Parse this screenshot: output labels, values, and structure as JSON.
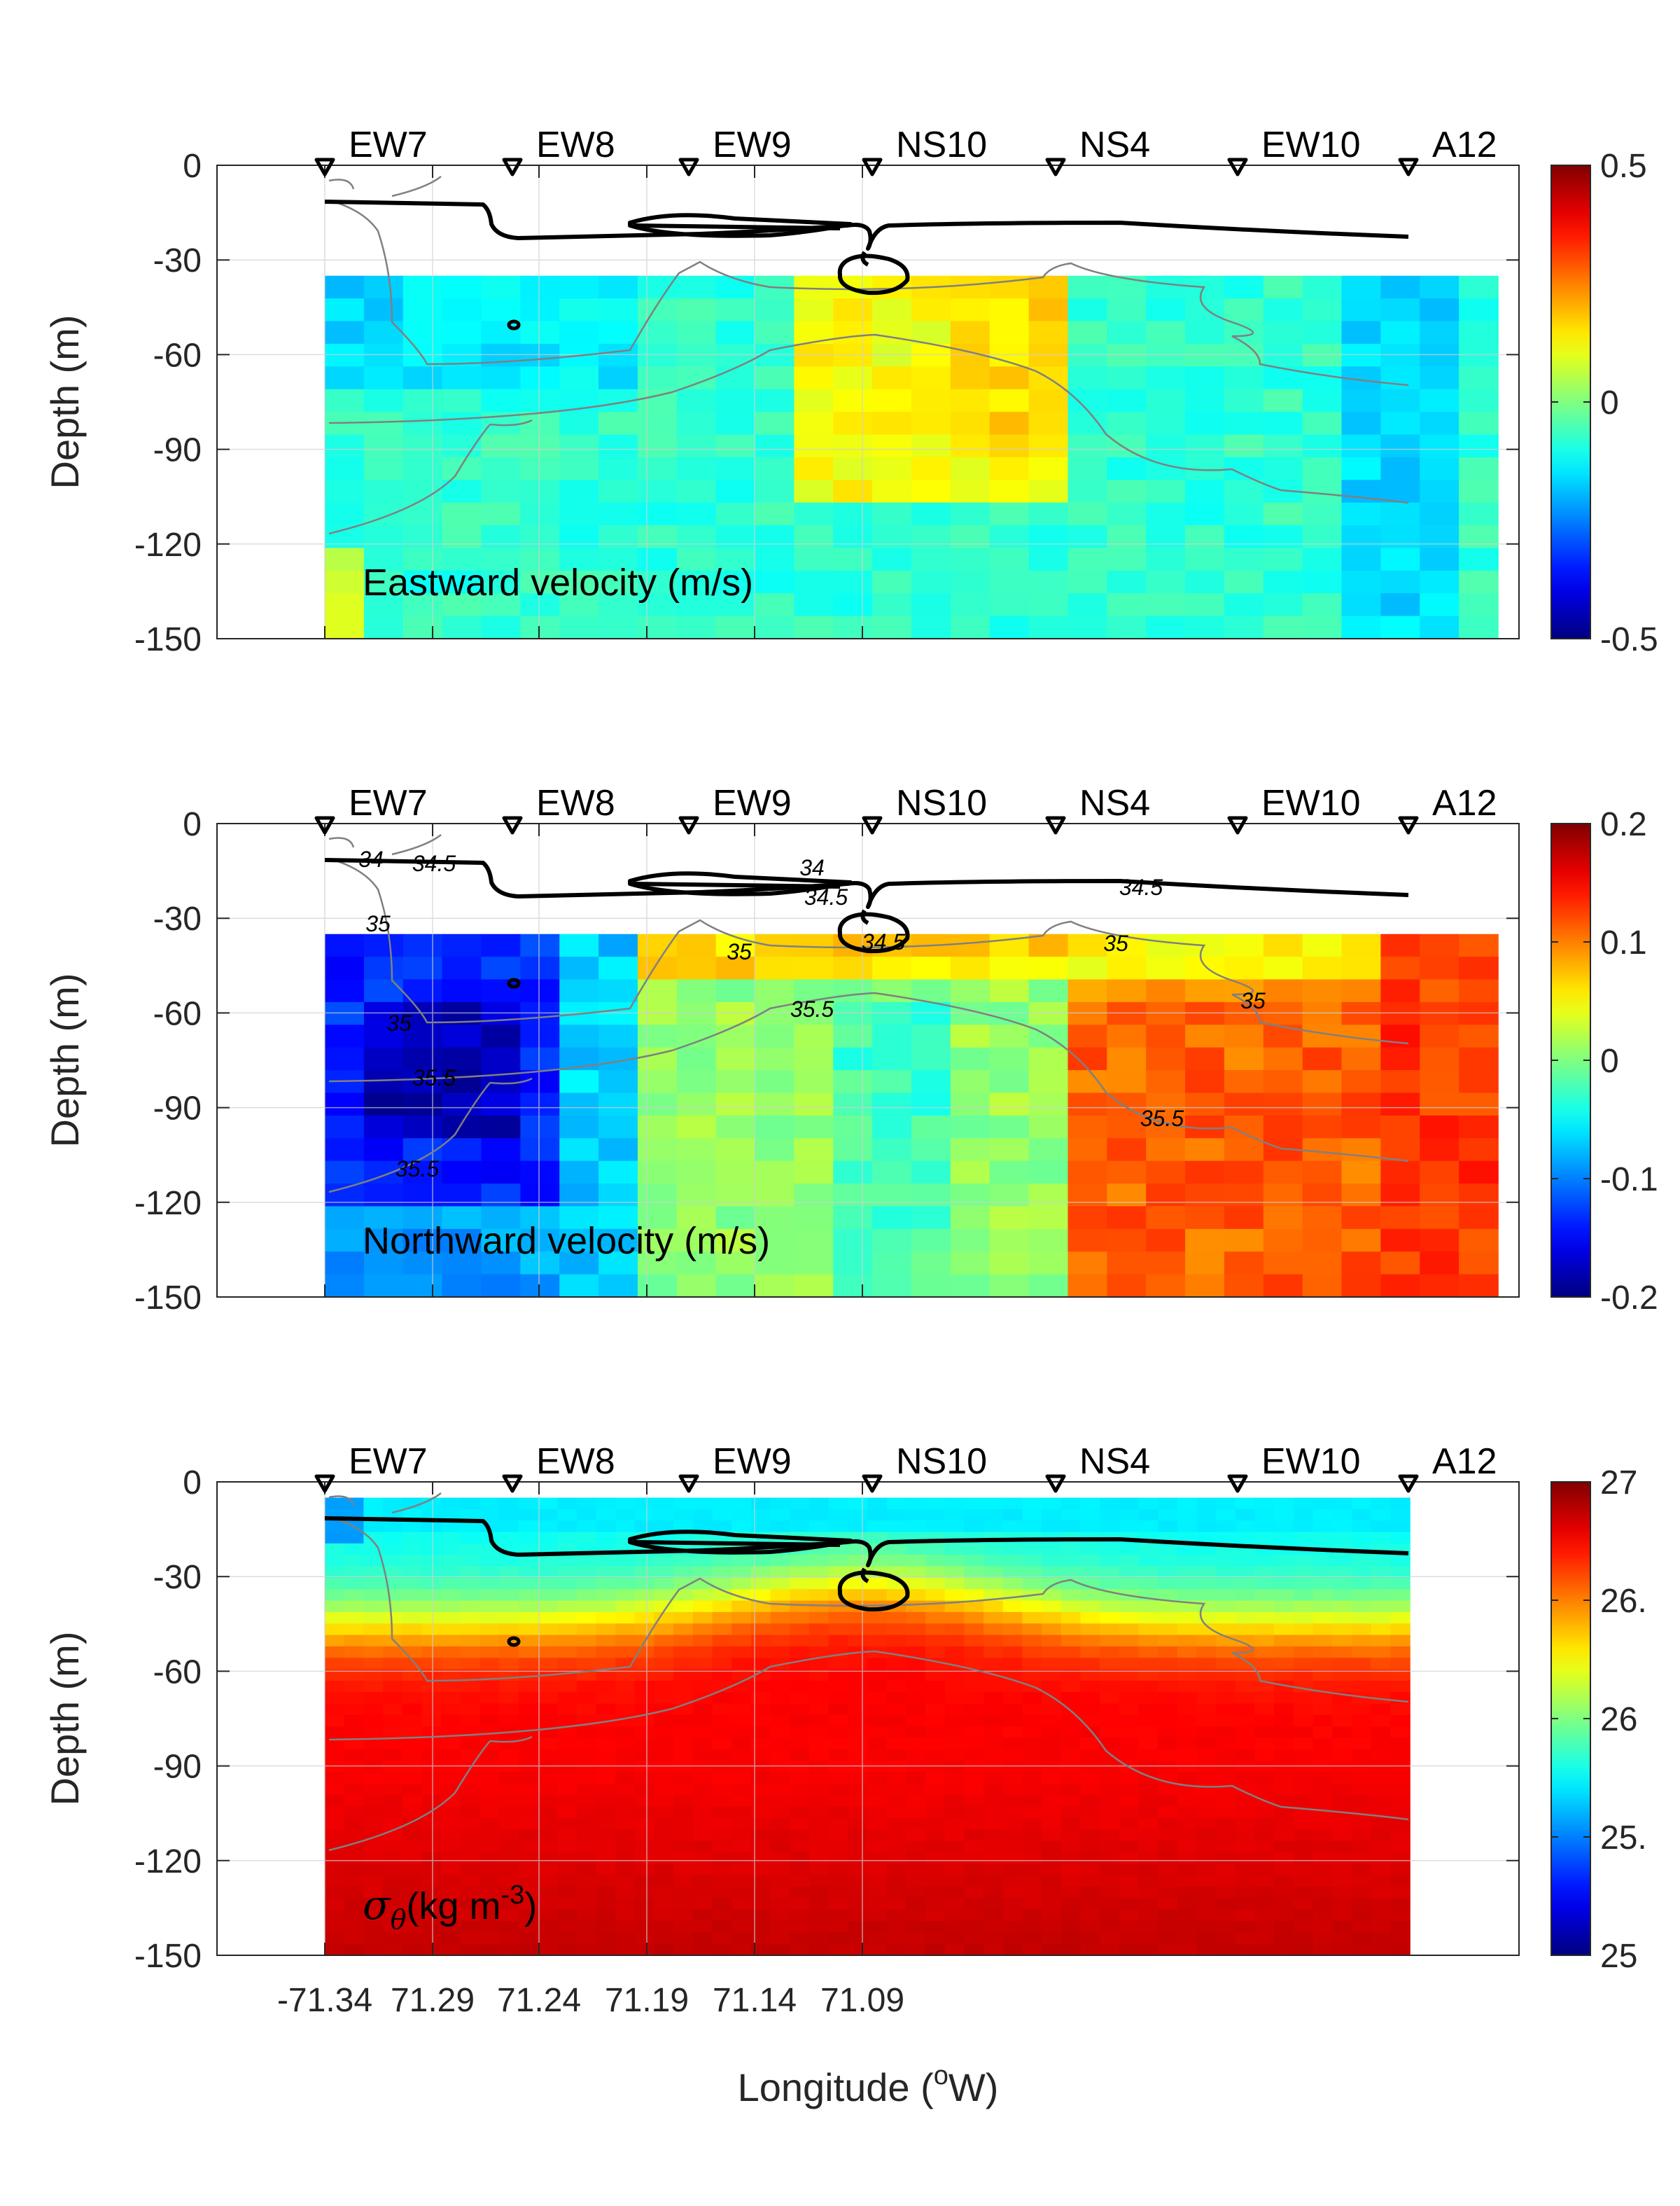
{
  "figure": {
    "xlabel_prefix": "Longitude (",
    "xlabel_sup": "o",
    "xlabel_suffix": "W)",
    "x_ticks": [
      "-71.34",
      "71.29",
      "71.24",
      "71.19",
      "71.14",
      "71.09"
    ],
    "stations": [
      "EW7",
      "EW8",
      "EW9",
      "NS10",
      "NS4",
      "EW10",
      "A12"
    ],
    "depth_ticks": [
      "0",
      "-30",
      "-60",
      "-90",
      "-120",
      "-150"
    ],
    "ylabel": "Depth (m)"
  },
  "colors": {
    "colormap": "jet",
    "contour_gray": "#808080",
    "surface_line": "#000000"
  },
  "chart_data": [
    {
      "type": "heatmap",
      "panel": "eastward",
      "label": "Eastward velocity (m/s)",
      "ylabel": "Depth (m)",
      "ylim": [
        -150,
        0
      ],
      "clim": [
        -0.5,
        0.5
      ],
      "colorbar_ticks": [
        "0.5",
        "0",
        "-0.5"
      ],
      "depth_range_data": [
        -35,
        -150
      ],
      "contour_labels": []
    },
    {
      "type": "heatmap",
      "panel": "northward",
      "label": "Northward velocity (m/s)",
      "ylabel": "Depth (m)",
      "ylim": [
        -150,
        0
      ],
      "clim": [
        -0.2,
        0.2
      ],
      "colorbar_ticks": [
        "0.2",
        "0.1",
        "0",
        "-0.1",
        "-0.2"
      ],
      "depth_range_data": [
        -35,
        -150
      ],
      "contour_labels": [
        "34",
        "34.5",
        "35",
        "35",
        "35.5",
        "35.5",
        "34",
        "34.5",
        "34.5",
        "35",
        "35.5",
        "34.5",
        "35",
        "35",
        "35.5"
      ]
    },
    {
      "type": "heatmap",
      "panel": "density",
      "label_symbol": "σ",
      "label_sub": "θ",
      "label_text": "(kg m",
      "label_sup": "-3",
      "label_close": ")",
      "ylabel": "Depth (m)",
      "ylim": [
        -150,
        0
      ],
      "clim": [
        25,
        27
      ],
      "colorbar_ticks": [
        "27",
        "26.",
        "26",
        "25.",
        "25"
      ],
      "depth_range_data": [
        -5,
        -150
      ],
      "contour_labels": []
    }
  ]
}
